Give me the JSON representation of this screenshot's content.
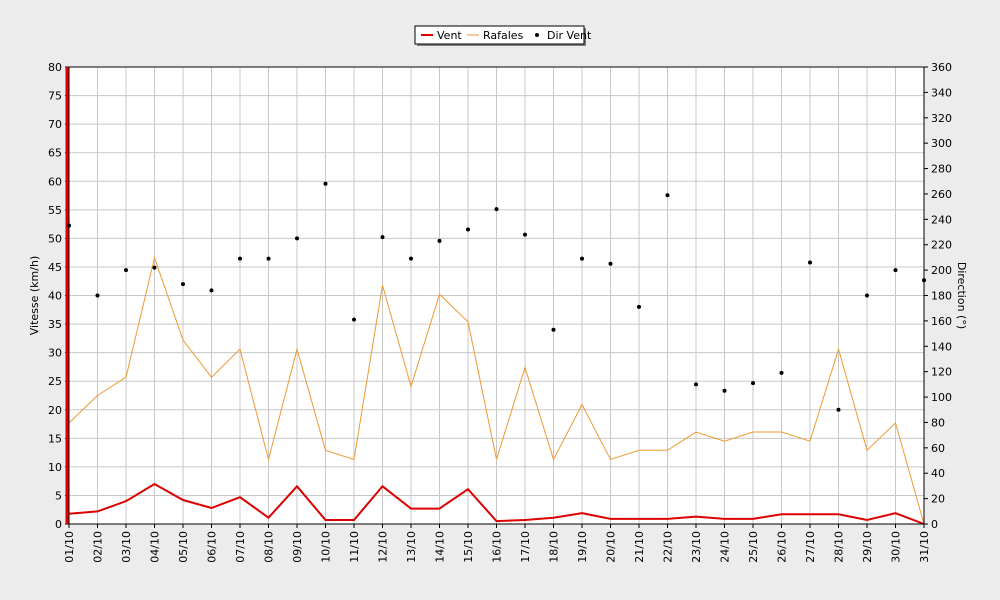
{
  "chart_data": {
    "type": "line",
    "categories": [
      "01/10",
      "02/10",
      "03/10",
      "04/10",
      "05/10",
      "06/10",
      "07/10",
      "08/10",
      "09/10",
      "10/10",
      "11/10",
      "12/10",
      "13/10",
      "14/10",
      "15/10",
      "16/10",
      "17/10",
      "18/10",
      "19/10",
      "20/10",
      "21/10",
      "22/10",
      "23/10",
      "24/10",
      "25/10",
      "26/10",
      "27/10",
      "28/10",
      "29/10",
      "30/10",
      "31/10"
    ],
    "ylabel": "Vitesse (km/h)",
    "y2label": "Direction (°)",
    "ylim": [
      0,
      80
    ],
    "y2lim": [
      0,
      360
    ],
    "yticks": [
      0,
      5,
      10,
      15,
      20,
      25,
      30,
      35,
      40,
      45,
      50,
      55,
      60,
      65,
      70,
      75,
      80
    ],
    "y2ticks": [
      0,
      20,
      40,
      60,
      80,
      100,
      120,
      140,
      160,
      180,
      200,
      220,
      240,
      260,
      280,
      300,
      320,
      340,
      360
    ],
    "grid": true,
    "legend_position": "top-center",
    "series": [
      {
        "name": "Vent",
        "axis": "left",
        "kind": "line",
        "color": "#dd0000",
        "values": [
          1.8,
          2.2,
          4.0,
          7.0,
          4.2,
          2.8,
          4.7,
          1.1,
          6.6,
          0.7,
          0.7,
          6.6,
          2.7,
          2.7,
          6.1,
          0.5,
          0.7,
          1.1,
          1.9,
          0.9,
          0.9,
          0.9,
          1.3,
          0.9,
          0.9,
          1.7,
          1.7,
          1.7,
          0.7,
          1.9,
          0.0
        ]
      },
      {
        "name": "Rafales",
        "axis": "left",
        "kind": "line",
        "color": "#ee9933",
        "values": [
          17.7,
          22.5,
          25.7,
          46.6,
          32.2,
          25.7,
          30.6,
          11.3,
          30.6,
          12.9,
          11.3,
          41.8,
          24.1,
          40.2,
          35.4,
          11.3,
          27.4,
          11.3,
          20.9,
          11.3,
          12.9,
          12.9,
          16.1,
          14.5,
          16.1,
          16.1,
          14.5,
          30.6,
          12.9,
          17.7,
          0.0
        ]
      },
      {
        "name": "Dir Vent",
        "axis": "right",
        "kind": "scatter",
        "color": "#000000",
        "values": [
          235,
          180,
          200,
          202,
          189,
          184,
          209,
          209,
          225,
          268,
          161,
          226,
          209,
          223,
          232,
          248,
          228,
          153,
          209,
          205,
          171,
          259,
          110,
          105,
          111,
          119,
          206,
          90,
          180,
          200,
          192
        ]
      }
    ]
  }
}
